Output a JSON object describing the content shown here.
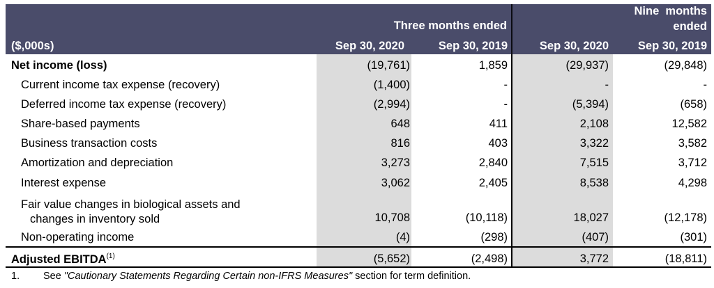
{
  "header": {
    "units": "($,000s)",
    "group1": "Three months ended",
    "group2_line1": "Nine  months",
    "group2_line2": "ended",
    "col1": "Sep 30, 2020",
    "col2": "Sep 30, 2019",
    "col3": "Sep 30, 2020",
    "col4": "Sep 30, 2019"
  },
  "rows": [
    {
      "label": "Net income (loss)",
      "values": [
        "(19,761)",
        "1,859",
        "(29,937)",
        "(29,848)"
      ]
    },
    {
      "label": "Current income tax expense (recovery)",
      "values": [
        "(1,400)",
        "-",
        "-",
        "-"
      ]
    },
    {
      "label": "Deferred income tax expense (recovery)",
      "values": [
        "(2,994)",
        "-",
        "(5,394)",
        "(658)"
      ]
    },
    {
      "label": "Share-based payments",
      "values": [
        "648",
        "411",
        "2,108",
        "12,582"
      ]
    },
    {
      "label": "Business transaction costs",
      "values": [
        "816",
        "403",
        "3,322",
        "3,582"
      ]
    },
    {
      "label": "Amortization and depreciation",
      "values": [
        "3,273",
        "2,840",
        "7,515",
        "3,712"
      ]
    },
    {
      "label": "Interest expense",
      "values": [
        "3,062",
        "2,405",
        "8,538",
        "4,298"
      ]
    },
    {
      "label_line1": "Fair value changes in biological assets and",
      "label_line2": "changes in inventory sold",
      "values": [
        "10,708",
        "(10,118)",
        "18,027",
        "(12,178)"
      ]
    },
    {
      "label": "Non-operating income",
      "values": [
        "(4)",
        "(298)",
        "(407)",
        "(301)"
      ]
    },
    {
      "label": "Adjusted EBITDA",
      "sup": "(1)",
      "values": [
        "(5,652)",
        "(2,498)",
        "3,772",
        "(18,811)"
      ]
    }
  ],
  "footnote": {
    "number": "1.",
    "prefix": "See ",
    "italic": "\"Cautionary Statements Regarding Certain non-IFRS Measures\"",
    "suffix": " section for term definition."
  }
}
